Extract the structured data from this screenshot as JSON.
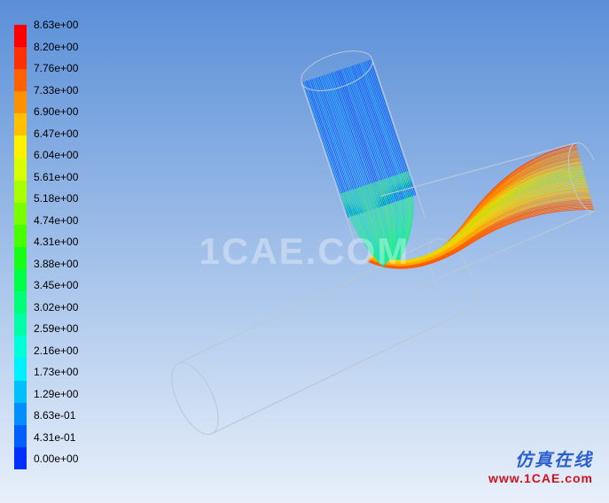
{
  "legend": {
    "labels": [
      "8.63e+00",
      "8.20e+00",
      "7.76e+00",
      "7.33e+00",
      "6.90e+00",
      "6.47e+00",
      "6.04e+00",
      "5.61e+00",
      "5.18e+00",
      "4.74e+00",
      "4.31e+00",
      "3.88e+00",
      "3.45e+00",
      "3.02e+00",
      "2.59e+00",
      "2.16e+00",
      "1.73e+00",
      "1.29e+00",
      "8.63e-01",
      "4.31e-01",
      "0.00e+00"
    ],
    "colors": [
      "#ff0000",
      "#ff3000",
      "#ff6000",
      "#ff9000",
      "#ffc000",
      "#fff000",
      "#d8ff00",
      "#a8ff00",
      "#78ff00",
      "#48ff00",
      "#18ff18",
      "#00ff48",
      "#00ff78",
      "#00ffa8",
      "#00ffd8",
      "#00f0ff",
      "#00c0ff",
      "#0090ff",
      "#0060ff",
      "#0030ff"
    ],
    "fontsize": 12
  },
  "watermark": {
    "text": "1CAE.COM"
  },
  "footer": {
    "cn": "仿真在线",
    "url": "www.1CAE.com"
  },
  "geometry": {
    "type": "streamlines",
    "description": "CFD pathlines in elbow pipe junction",
    "outline_color": "#b8c8d8",
    "aspect": "isometric",
    "inlet_pipe": {
      "axis_start": [
        230,
        30
      ],
      "axis_end": [
        290,
        210
      ],
      "radius": 42,
      "color_range": [
        "#0030ff",
        "#00e0ff"
      ]
    },
    "outlet_pipe": {
      "axis_start": [
        290,
        210
      ],
      "axis_end": [
        510,
        150
      ],
      "radius": 40,
      "color_range": [
        "#50ff20",
        "#ffd000",
        "#ff3000"
      ]
    },
    "bottom_pipe": {
      "axis_start": [
        70,
        400
      ],
      "axis_end": [
        360,
        260
      ],
      "radius": 44,
      "wireframe_only": true
    },
    "elbow_center": [
      290,
      220
    ],
    "n_streamlines": 48
  }
}
